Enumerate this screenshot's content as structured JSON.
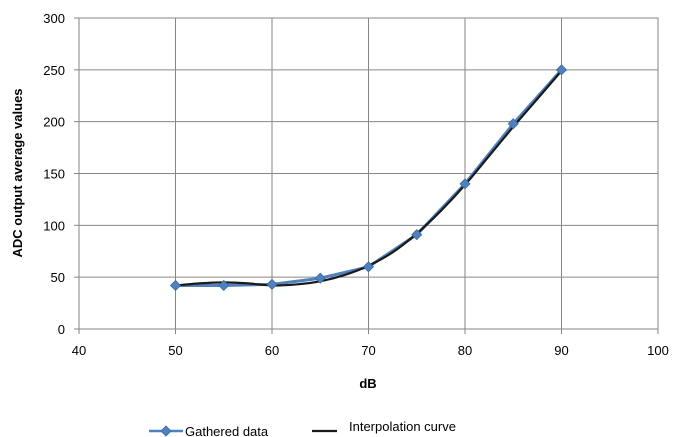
{
  "chart_data": {
    "type": "line",
    "title": "",
    "xlabel": "dB",
    "ylabel": "ADC output  average values",
    "xlim": [
      40,
      100
    ],
    "ylim": [
      0,
      300
    ],
    "x_ticks": [
      40,
      50,
      60,
      70,
      80,
      90,
      100
    ],
    "y_ticks": [
      0,
      50,
      100,
      150,
      200,
      250,
      300
    ],
    "grid": true,
    "legend_position": "bottom",
    "series": [
      {
        "name": "Gathered data",
        "color": "#4F81BD",
        "marker": "diamond",
        "x": [
          50,
          55,
          60,
          65,
          70,
          75,
          80,
          85,
          90
        ],
        "y": [
          42,
          42,
          43,
          49,
          60,
          91,
          140,
          198,
          250
        ]
      },
      {
        "name": "Interpolation curve",
        "color": "#1a1a1a",
        "marker": "none",
        "x": [
          50,
          52.5,
          55,
          57.5,
          60,
          62.5,
          65,
          67.5,
          70,
          72.5,
          75,
          77.5,
          80,
          82.5,
          85,
          87.5,
          90
        ],
        "y": [
          42,
          44,
          45,
          44,
          42,
          43,
          46,
          52,
          61,
          74,
          92,
          114,
          139,
          167,
          195,
          222,
          249
        ]
      }
    ]
  }
}
